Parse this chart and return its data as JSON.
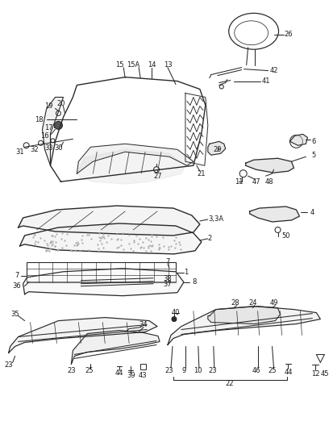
{
  "bg_color": "#ffffff",
  "line_color": "#2a2a2a",
  "label_color": "#1a1a1a",
  "label_fontsize": 6.0,
  "fig_width": 4.14,
  "fig_height": 5.38,
  "dpi": 100
}
